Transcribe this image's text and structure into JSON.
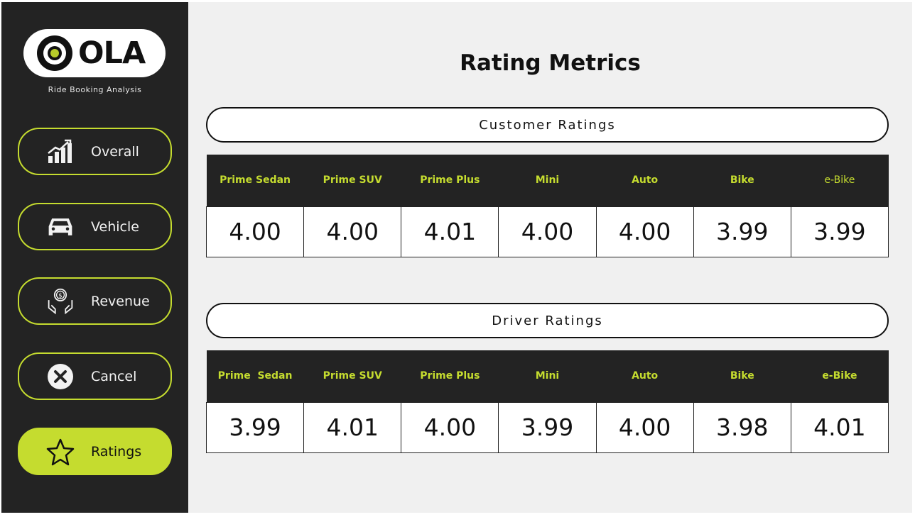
{
  "brand": {
    "logo_text": "OLA",
    "tagline": "Ride Booking Analysis",
    "accent_color": "#c5dc2f",
    "sidebar_color": "#232323"
  },
  "nav": [
    {
      "label": "Overall",
      "icon": "chart-growth-icon",
      "active": false
    },
    {
      "label": "Vehicle",
      "icon": "car-icon",
      "active": false
    },
    {
      "label": "Revenue",
      "icon": "money-hands-icon",
      "active": false
    },
    {
      "label": "Cancel",
      "icon": "close-circle-icon",
      "active": false
    },
    {
      "label": "Ratings",
      "icon": "star-icon",
      "active": true
    }
  ],
  "page_title": "Rating Metrics",
  "customer_ratings": {
    "title": "Customer Ratings",
    "headers": [
      "Prime Sedan",
      "Prime SUV",
      "Prime Plus",
      "Mini",
      "Auto",
      "Bike",
      "e-Bike"
    ],
    "values": [
      "4.00",
      "4.00",
      "4.01",
      "4.00",
      "4.00",
      "3.99",
      "3.99"
    ]
  },
  "driver_ratings": {
    "title": "Driver Ratings",
    "headers": [
      "Prime  Sedan",
      "Prime SUV",
      "Prime Plus",
      "Mini",
      "Auto",
      "Bike",
      "e-Bike"
    ],
    "values": [
      "3.99",
      "4.01",
      "4.00",
      "3.99",
      "4.00",
      "3.98",
      "4.01"
    ]
  }
}
